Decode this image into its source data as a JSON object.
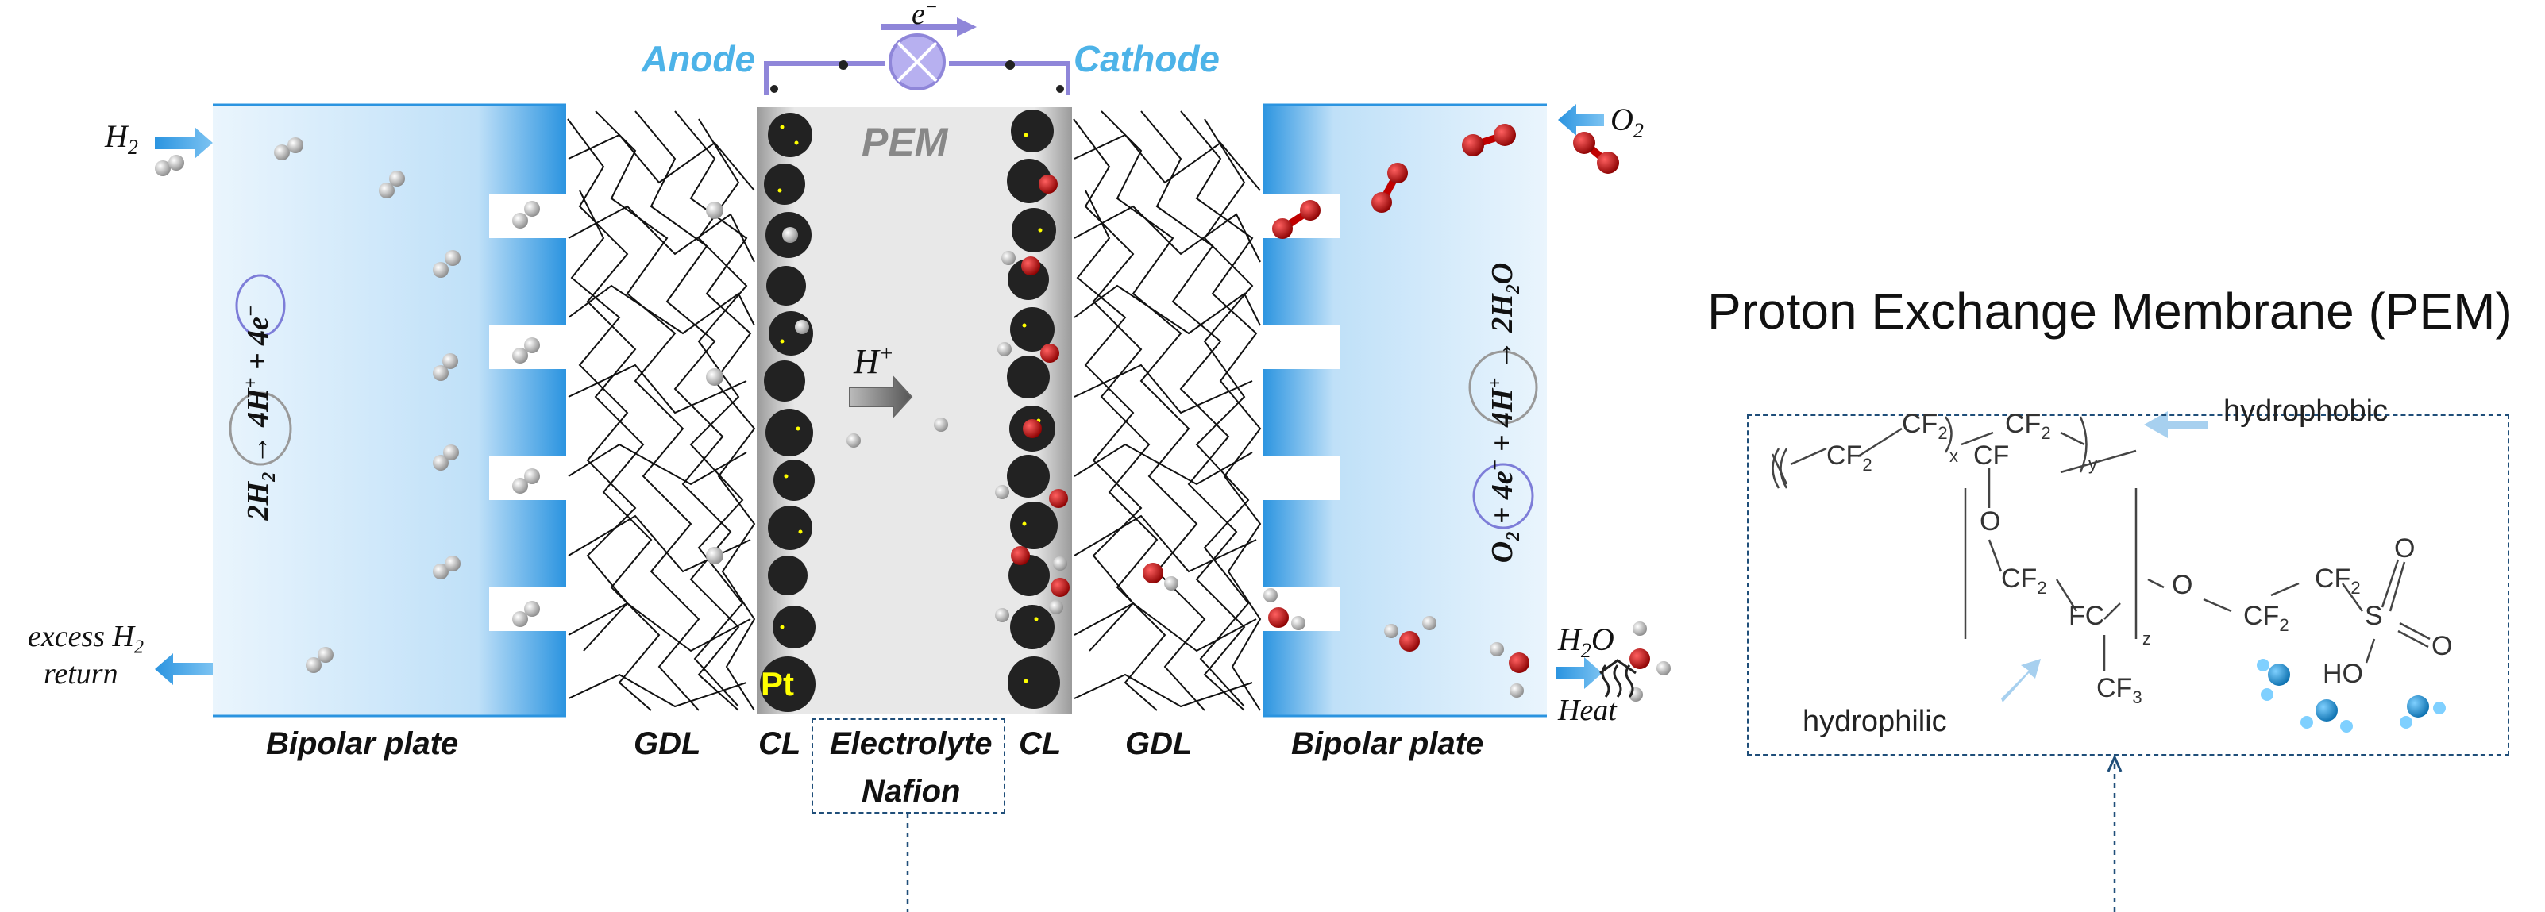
{
  "cell": {
    "anode_label": "Anode",
    "cathode_label": "Cathode",
    "electron_label": "e",
    "electron_sup": "−",
    "pem_label": "PEM",
    "proton_label": "H",
    "proton_sup": "+",
    "pt_label": "Pt",
    "h2_in": "H",
    "h2_in_sub": "2",
    "o2_in": "O",
    "o2_in_sub": "2",
    "excess_line1": "excess H",
    "excess_sub": "2",
    "excess_line2": "return",
    "h2o_out": "H",
    "h2o_out_sub": "2",
    "h2o_out_tail": "O",
    "heat_label": "Heat",
    "anode_equation_parts": [
      "2H",
      "2",
      " → ",
      "4H",
      "+",
      " + ",
      "4e",
      "−"
    ],
    "cathode_equation_parts": [
      "O",
      "2",
      " + ",
      "4e",
      "−",
      " + ",
      "4H",
      "+",
      " → 2H",
      "2",
      "O"
    ]
  },
  "bottom_labels": {
    "bipolar_left": "Bipolar plate",
    "gdl_left": "GDL",
    "cl_left": "CL",
    "electrolyte_line1": "Electrolyte",
    "electrolyte_line2": "Nafion",
    "cl_right": "CL",
    "gdl_right": "GDL",
    "bipolar_right": "Bipolar plate"
  },
  "membrane": {
    "title": "Proton Exchange Membrane (PEM)",
    "hydrophobic_label": "hydrophobic",
    "hydrophilic_label": "hydrophilic",
    "chem": {
      "cf2": "CF",
      "cf2_sub": "2",
      "cf": "CF",
      "fc": "FC",
      "cf3": "CF",
      "cf3_sub": "3",
      "o": "O",
      "s": "S",
      "ho": "HO",
      "x": "x",
      "y": "y",
      "z": "z"
    }
  },
  "colors": {
    "accent_blue": "#4db3e8",
    "frame_purple": "#8f86d9",
    "plate_blue": "#2b94e0",
    "box_navy": "#1f4e79",
    "oxygen_red": "#c00000",
    "catalyst_black": "#222222",
    "pt_yellow": "#ffff00"
  }
}
